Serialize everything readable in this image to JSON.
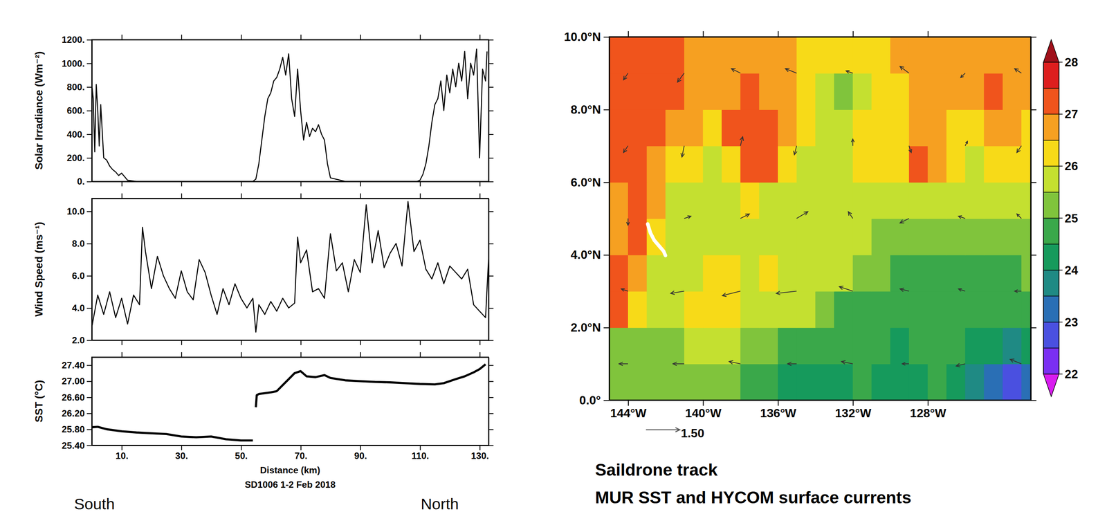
{
  "chart_data": [
    {
      "type": "line",
      "ylabel": "Solar Irradiance (Wm⁻²)",
      "color": "#000000",
      "tick_labels": "y",
      "xlim": [
        0,
        133
      ],
      "xticks": [
        10,
        30,
        50,
        70,
        90,
        110,
        130
      ],
      "ylim": [
        0,
        1200
      ],
      "yticks": [
        {
          "value": 0,
          "label": "0."
        },
        {
          "value": 200,
          "label": "200."
        },
        {
          "value": 400,
          "label": "400."
        },
        {
          "value": 600,
          "label": "600."
        },
        {
          "value": 800,
          "label": "800."
        },
        {
          "value": 1000,
          "label": "1000."
        },
        {
          "value": 1200,
          "label": "1200."
        }
      ],
      "x": [
        0,
        0.5,
        1,
        1.5,
        2,
        2.5,
        3,
        4,
        5,
        6,
        7,
        8,
        9,
        10,
        12,
        15,
        20,
        30,
        40,
        50,
        54,
        55,
        56,
        57,
        58,
        59,
        60,
        61,
        62,
        63,
        64,
        65,
        66,
        67,
        68,
        69,
        70,
        71,
        72,
        73,
        74,
        75,
        76,
        77,
        78,
        79,
        80,
        85,
        95,
        105,
        109,
        110,
        111,
        112,
        113,
        114,
        115,
        116,
        117,
        118,
        119,
        120,
        121,
        122,
        123,
        124,
        125,
        126,
        127,
        128,
        129,
        130,
        131,
        132,
        132.5
      ],
      "values": [
        820,
        700,
        250,
        820,
        600,
        300,
        650,
        200,
        180,
        130,
        100,
        80,
        50,
        70,
        10,
        0,
        0,
        0,
        0,
        0,
        0,
        20,
        150,
        350,
        550,
        700,
        750,
        850,
        880,
        950,
        1050,
        900,
        1080,
        700,
        550,
        950,
        600,
        350,
        500,
        380,
        450,
        420,
        480,
        400,
        350,
        150,
        30,
        0,
        0,
        0,
        0,
        10,
        60,
        150,
        300,
        500,
        650,
        700,
        850,
        600,
        900,
        750,
        950,
        800,
        1000,
        850,
        1100,
        700,
        1000,
        900,
        1120,
        200,
        950,
        850,
        1100
      ]
    },
    {
      "type": "line",
      "ylabel": "Wind Speed (ms⁻¹)",
      "color": "#000000",
      "tick_labels": "y",
      "xlim": [
        0,
        133
      ],
      "xticks": [
        10,
        30,
        50,
        70,
        90,
        110,
        130
      ],
      "ylim": [
        2,
        10.8
      ],
      "yticks": [
        {
          "value": 2,
          "label": "2.0"
        },
        {
          "value": 4,
          "label": "4.0"
        },
        {
          "value": 6,
          "label": "6.0"
        },
        {
          "value": 8,
          "label": "8.0"
        },
        {
          "value": 10,
          "label": "10.0"
        }
      ],
      "x": [
        0,
        2,
        4,
        6,
        8,
        10,
        12,
        14,
        16,
        17,
        18,
        20,
        22,
        24,
        26,
        28,
        30,
        32,
        34,
        36,
        38,
        40,
        42,
        44,
        46,
        48,
        50,
        52,
        54,
        55,
        56,
        58,
        60,
        62,
        64,
        66,
        68,
        69,
        70,
        72,
        74,
        76,
        78,
        80,
        82,
        84,
        86,
        88,
        90,
        92,
        94,
        96,
        98,
        100,
        102,
        104,
        106,
        108,
        110,
        112,
        114,
        116,
        118,
        120,
        122,
        124,
        126,
        128,
        130,
        132,
        133
      ],
      "values": [
        2.8,
        4.8,
        3.6,
        5.0,
        3.4,
        4.6,
        3.0,
        4.8,
        4.2,
        9.0,
        7.5,
        5.2,
        7.2,
        6.0,
        5.2,
        4.6,
        6.3,
        5.0,
        4.5,
        7.0,
        6.2,
        4.8,
        3.6,
        5.2,
        4.2,
        5.5,
        4.6,
        4.0,
        4.6,
        2.5,
        4.2,
        3.6,
        4.4,
        3.8,
        4.6,
        4.0,
        4.3,
        8.4,
        6.8,
        7.6,
        5.0,
        5.2,
        4.6,
        8.6,
        6.3,
        6.8,
        5.0,
        7.0,
        6.2,
        10.4,
        6.8,
        8.8,
        6.5,
        7.4,
        8.0,
        6.6,
        10.6,
        7.5,
        8.2,
        6.4,
        5.8,
        6.8,
        5.5,
        6.6,
        6.2,
        5.8,
        6.4,
        4.2,
        3.8,
        3.4,
        7.0
      ]
    },
    {
      "type": "line",
      "ylabel": "SST (°C)",
      "xlabel": "Distance (km)",
      "color": "#000000",
      "annotations": [
        "SD1006 1-2 Feb 2018",
        "South",
        "North"
      ],
      "xlim": [
        0,
        133
      ],
      "xticks": [
        {
          "value": 10,
          "label": "10."
        },
        {
          "value": 30,
          "label": "30."
        },
        {
          "value": 50,
          "label": "50."
        },
        {
          "value": 70,
          "label": "70."
        },
        {
          "value": 90,
          "label": "90."
        },
        {
          "value": 110,
          "label": "110."
        },
        {
          "value": 130,
          "label": "130."
        }
      ],
      "ylim": [
        25.4,
        27.6
      ],
      "yticks": [
        {
          "value": 25.4,
          "label": "25.40"
        },
        {
          "value": 25.8,
          "label": "25.80"
        },
        {
          "value": 26.2,
          "label": "26.20"
        },
        {
          "value": 26.6,
          "label": "26.60"
        },
        {
          "value": 27,
          "label": "27.00"
        },
        {
          "value": 27.4,
          "label": "27.40"
        }
      ],
      "x": [
        0,
        2,
        5,
        10,
        15,
        20,
        25,
        30,
        35,
        40,
        45,
        50,
        54,
        54.5,
        55,
        55.3,
        56,
        58,
        60,
        62,
        64,
        66,
        68,
        70,
        72,
        75,
        78,
        80,
        85,
        90,
        95,
        100,
        105,
        110,
        115,
        118,
        122,
        125,
        128,
        130,
        132
      ],
      "values": [
        25.85,
        25.86,
        25.8,
        25.75,
        25.72,
        25.7,
        25.68,
        25.62,
        25.6,
        25.62,
        25.55,
        25.52,
        25.52,
        null,
        26.35,
        26.65,
        26.68,
        26.7,
        26.72,
        26.75,
        26.9,
        27.05,
        27.2,
        27.25,
        27.12,
        27.1,
        27.15,
        27.08,
        27.02,
        27.0,
        26.98,
        26.97,
        26.95,
        26.93,
        26.92,
        26.95,
        27.05,
        27.12,
        27.22,
        27.3,
        27.42
      ]
    },
    {
      "type": "heatmap",
      "title": "Saildrone track",
      "subtitle": "MUR SST and HYCOM surface currents",
      "xlim": [
        -145,
        -122.5
      ],
      "xticks": [
        {
          "value": -144,
          "label": "144°W"
        },
        {
          "value": -140,
          "label": "140°W"
        },
        {
          "value": -136,
          "label": "136°W"
        },
        {
          "value": -132,
          "label": "132°W"
        },
        {
          "value": -128,
          "label": "128°W"
        }
      ],
      "ylim": [
        0,
        10
      ],
      "yticks": [
        {
          "value": 0,
          "label": "0.0°"
        },
        {
          "value": 2,
          "label": "2.0°N"
        },
        {
          "value": 4,
          "label": "4.0°N"
        },
        {
          "value": 6,
          "label": "6.0°N"
        },
        {
          "value": 8,
          "label": "8.0°N"
        },
        {
          "value": 10,
          "label": "10.0°N"
        }
      ],
      "sst": {
        "lon": [
          -144.5,
          -143.5,
          -142.5,
          -141.5,
          -140.5,
          -139.5,
          -138.5,
          -137.5,
          -136.5,
          -135.5,
          -134.5,
          -133.5,
          -132.5,
          -131.5,
          -130.5,
          -129.5,
          -128.5,
          -127.5,
          -126.5,
          -125.5,
          -124.5,
          -123.5,
          -122.5
        ],
        "lat": [
          0.5,
          1.5,
          2.5,
          3.5,
          4.5,
          5.5,
          6.5,
          7.5,
          8.5,
          9.5
        ],
        "z": [
          [
            25.2,
            25.1,
            25.2,
            25.3,
            25.2,
            25.2,
            25.1,
            24.9,
            24.7,
            24.4,
            24.2,
            24.1,
            24.2,
            24.5,
            24.3,
            24.2,
            24.4,
            24.5,
            24.1,
            23.7,
            23.3,
            22.9,
            23.4
          ],
          [
            25.4,
            25.3,
            25.3,
            25.4,
            25.5,
            25.5,
            25.5,
            25.3,
            25.1,
            24.8,
            24.6,
            24.5,
            24.6,
            24.8,
            24.6,
            24.4,
            24.6,
            24.7,
            24.5,
            24.2,
            24.0,
            23.8,
            24.0
          ],
          [
            27.1,
            26.3,
            25.7,
            25.8,
            26.0,
            26.2,
            26.1,
            25.9,
            25.8,
            25.7,
            25.6,
            25.3,
            24.9,
            24.8,
            24.9,
            24.8,
            24.7,
            24.6,
            24.5,
            24.6,
            24.6,
            24.5,
            24.7
          ],
          [
            27.2,
            26.6,
            25.8,
            25.6,
            25.9,
            26.1,
            26.0,
            25.9,
            26.0,
            25.9,
            25.8,
            25.7,
            25.5,
            25.1,
            25.0,
            24.9,
            24.9,
            24.8,
            24.9,
            24.9,
            24.8,
            24.9,
            25.0
          ],
          [
            26.7,
            27.0,
            26.2,
            25.8,
            25.8,
            25.9,
            25.8,
            25.8,
            25.9,
            25.8,
            25.7,
            25.8,
            25.7,
            25.6,
            25.3,
            25.2,
            25.1,
            25.0,
            25.1,
            25.1,
            25.0,
            25.1,
            25.2
          ],
          [
            26.8,
            27.0,
            26.5,
            25.9,
            25.8,
            25.8,
            25.9,
            26.0,
            25.9,
            25.8,
            25.8,
            25.7,
            25.8,
            25.9,
            25.9,
            25.8,
            25.9,
            25.8,
            25.6,
            25.5,
            25.6,
            25.7,
            25.8
          ],
          [
            27.0,
            27.1,
            26.9,
            26.3,
            26.0,
            25.9,
            26.4,
            27.1,
            27.2,
            26.4,
            25.9,
            25.8,
            25.9,
            26.0,
            26.1,
            26.2,
            27.1,
            26.5,
            26.0,
            25.9,
            26.0,
            26.2,
            26.0
          ],
          [
            27.3,
            27.2,
            27.1,
            26.8,
            26.5,
            26.4,
            27.1,
            27.3,
            27.2,
            26.8,
            26.2,
            25.9,
            25.8,
            26.0,
            26.1,
            26.3,
            26.6,
            26.7,
            26.4,
            26.3,
            26.5,
            26.7,
            26.3
          ],
          [
            27.3,
            27.2,
            27.3,
            27.1,
            26.8,
            26.6,
            26.9,
            27.2,
            26.9,
            26.7,
            26.3,
            25.9,
            25.4,
            25.8,
            26.2,
            26.4,
            26.7,
            26.9,
            26.6,
            26.7,
            27.0,
            26.8,
            26.5
          ],
          [
            27.2,
            27.3,
            27.2,
            27.1,
            26.9,
            26.8,
            26.7,
            26.7,
            26.8,
            26.6,
            26.4,
            26.1,
            26.0,
            26.1,
            26.3,
            26.6,
            26.8,
            26.7,
            26.6,
            26.7,
            26.8,
            26.9,
            26.6
          ]
        ]
      },
      "colorbar": {
        "lim": [
          22,
          28
        ],
        "ticks": [
          22,
          23,
          24,
          25,
          26,
          27,
          28
        ],
        "levels": [
          22,
          22.5,
          23,
          23.5,
          24,
          24.5,
          25,
          25.5,
          26,
          26.5,
          27,
          27.5,
          28
        ],
        "colors": [
          "#d81cef",
          "#7a2ff2",
          "#4a50e0",
          "#2a6fb5",
          "#1f8a84",
          "#169a5c",
          "#3aa84a",
          "#80c43c",
          "#c4e030",
          "#f7da18",
          "#f6a021",
          "#f0541c",
          "#dd1e1e",
          "#a0101a"
        ]
      },
      "vectors": {
        "lon": [
          -144,
          -141,
          -138,
          -135,
          -132,
          -129,
          -126,
          -123,
          -144,
          -141,
          -138,
          -135,
          -132,
          -129,
          -126,
          -123,
          -144,
          -141,
          -138,
          -135,
          -132,
          -129,
          -126,
          -123,
          -144,
          -141,
          -138,
          -135,
          -132,
          -129,
          -126,
          -123,
          -144,
          -141,
          -138,
          -135,
          -132,
          -129,
          -126,
          -123
        ],
        "lat": [
          1,
          1,
          1,
          1,
          1,
          1,
          1,
          1,
          3,
          3,
          3,
          3,
          3,
          3,
          3,
          3,
          5,
          5,
          5,
          5,
          5,
          5,
          5,
          5,
          7,
          7,
          7,
          7,
          7,
          7,
          7,
          7,
          9,
          9,
          9,
          9,
          9,
          9,
          9,
          9
        ],
        "u": [
          -0.4,
          -0.5,
          -0.5,
          -0.4,
          -0.5,
          -0.3,
          -0.4,
          -0.5,
          -0.3,
          -0.6,
          -0.8,
          -0.9,
          -0.6,
          -0.4,
          -0.3,
          -0.3,
          0.0,
          0.3,
          0.4,
          0.5,
          -0.2,
          -0.4,
          -0.3,
          -0.2,
          -0.2,
          -0.1,
          0.1,
          -0.1,
          0.0,
          0.1,
          0.1,
          -0.2,
          -0.2,
          -0.3,
          -0.4,
          -0.5,
          -0.3,
          -0.4,
          -0.2,
          -0.3
        ],
        "v": [
          0.0,
          0.0,
          0.1,
          0.0,
          0.1,
          0.0,
          -0.1,
          0.2,
          0.1,
          -0.1,
          -0.2,
          -0.1,
          0.2,
          0.1,
          0.1,
          0.0,
          -0.3,
          0.1,
          0.2,
          0.3,
          0.3,
          -0.2,
          0.1,
          0.2,
          -0.3,
          -0.5,
          0.4,
          -0.4,
          0.3,
          -0.3,
          0.2,
          -0.3,
          -0.3,
          -0.4,
          0.2,
          0.2,
          0.1,
          0.3,
          -0.2,
          0.2
        ]
      },
      "vector_key": {
        "value": 1.5,
        "label": "1.50"
      },
      "track": {
        "color": "#ffffff",
        "lon": [
          -142.95,
          -142.8,
          -142.6,
          -142.35,
          -142.1,
          -142.0
        ],
        "lat": [
          4.85,
          4.6,
          4.4,
          4.25,
          4.1,
          3.98
        ]
      }
    }
  ]
}
